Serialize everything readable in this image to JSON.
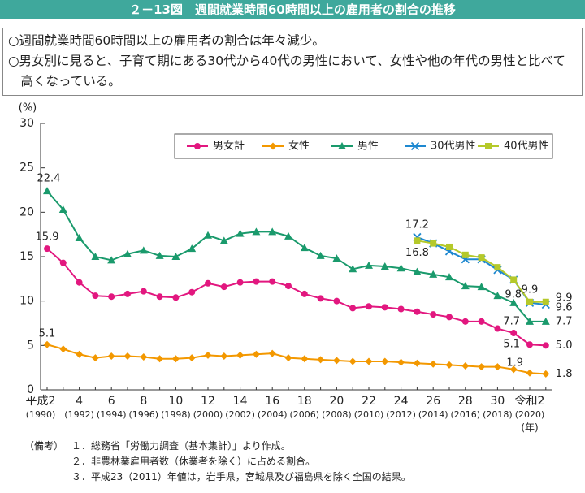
{
  "header": {
    "title": "２－13図　週間就業時間60時間以上の雇用者の割合の推移"
  },
  "summary": [
    "○週間就業時間60時間以上の雇用者の割合は年々減少。",
    "○男女別に見ると、子育て期にある30代から40代の男性において、女性や他の年代の男性と比べて高くなっている。"
  ],
  "chart_data": {
    "type": "line",
    "y_label": "(%)",
    "x_label": "(年)",
    "categories": [
      "平成2",
      null,
      "4",
      null,
      "6",
      null,
      "8",
      null,
      "10",
      null,
      "12",
      null,
      "14",
      null,
      "16",
      null,
      "18",
      null,
      "20",
      null,
      "22",
      null,
      "24",
      null,
      "26",
      null,
      "28",
      null,
      "30",
      null,
      "令和2",
      null
    ],
    "category_years": [
      "(1990)",
      null,
      "(1992)",
      null,
      "(1994)",
      null,
      "(1996)",
      null,
      "(1998)",
      null,
      "(2000)",
      null,
      "(2002)",
      null,
      "(2004)",
      null,
      "(2006)",
      null,
      "(2008)",
      null,
      "(2010)",
      null,
      "(2012)",
      null,
      "(2014)",
      null,
      "(2016)",
      null,
      "(2018)",
      null,
      "(2020)",
      null
    ],
    "ylim": [
      0,
      30
    ],
    "yticks": [
      0,
      5,
      10,
      15,
      20,
      25,
      30
    ],
    "grid": false,
    "legend": "top-right",
    "series": [
      {
        "name": "男女計",
        "color": "#e2177f",
        "marker": "circle",
        "values": [
          15.9,
          14.3,
          12.1,
          10.6,
          10.5,
          10.8,
          11.1,
          10.5,
          10.4,
          11.0,
          12.0,
          11.6,
          12.1,
          12.2,
          12.2,
          11.7,
          10.8,
          10.3,
          10.0,
          9.2,
          9.4,
          9.3,
          9.1,
          8.8,
          8.5,
          8.2,
          7.7,
          7.7,
          6.9,
          6.4,
          5.1,
          5.0
        ],
        "value_labels": [
          "15.9",
          null,
          null,
          null,
          null,
          null,
          null,
          null,
          null,
          null,
          null,
          null,
          null,
          null,
          null,
          null,
          null,
          null,
          null,
          null,
          null,
          null,
          null,
          null,
          null,
          null,
          null,
          null,
          null,
          null,
          "5.1",
          "5.0"
        ]
      },
      {
        "name": "女性",
        "color": "#f39800",
        "marker": "diamond",
        "values": [
          5.1,
          4.6,
          4.0,
          3.6,
          3.8,
          3.8,
          3.7,
          3.5,
          3.5,
          3.6,
          3.9,
          3.8,
          3.9,
          4.0,
          4.1,
          3.6,
          3.5,
          3.4,
          3.3,
          3.2,
          3.2,
          3.2,
          3.1,
          3.0,
          2.9,
          2.8,
          2.7,
          2.6,
          2.6,
          2.3,
          1.9,
          1.8
        ],
        "value_labels": [
          "5.1",
          null,
          null,
          null,
          null,
          null,
          null,
          null,
          null,
          null,
          null,
          null,
          null,
          null,
          null,
          null,
          null,
          null,
          null,
          null,
          null,
          null,
          null,
          null,
          null,
          null,
          null,
          null,
          null,
          null,
          "1.9",
          "1.8"
        ]
      },
      {
        "name": "男性",
        "color": "#1a9a6c",
        "marker": "triangle",
        "values": [
          22.4,
          20.3,
          17.1,
          15.0,
          14.6,
          15.3,
          15.7,
          15.1,
          15.0,
          15.9,
          17.4,
          16.8,
          17.6,
          17.8,
          17.8,
          17.3,
          16.0,
          15.1,
          14.8,
          13.6,
          14.0,
          13.9,
          13.7,
          13.3,
          13.0,
          12.7,
          11.7,
          11.6,
          10.6,
          9.8,
          7.7,
          7.7
        ],
        "value_labels": [
          "22.4",
          null,
          null,
          null,
          null,
          null,
          null,
          null,
          null,
          null,
          null,
          null,
          null,
          null,
          null,
          null,
          null,
          null,
          null,
          null,
          null,
          null,
          null,
          null,
          null,
          null,
          null,
          null,
          null,
          null,
          "7.7",
          "7.7"
        ]
      },
      {
        "name": "30代男性",
        "color": "#1e88d0",
        "marker": "x",
        "values": [
          null,
          null,
          null,
          null,
          null,
          null,
          null,
          null,
          null,
          null,
          null,
          null,
          null,
          null,
          null,
          null,
          null,
          null,
          null,
          null,
          null,
          null,
          null,
          17.2,
          16.5,
          15.6,
          14.7,
          14.7,
          13.5,
          12.4,
          9.8,
          9.6
        ],
        "value_labels": [
          null,
          null,
          null,
          null,
          null,
          null,
          null,
          null,
          null,
          null,
          null,
          null,
          null,
          null,
          null,
          null,
          null,
          null,
          null,
          null,
          null,
          null,
          null,
          "17.2",
          null,
          null,
          null,
          null,
          null,
          null,
          "9.8",
          "9.6"
        ]
      },
      {
        "name": "40代男性",
        "color": "#b5c92a",
        "marker": "square",
        "values": [
          null,
          null,
          null,
          null,
          null,
          null,
          null,
          null,
          null,
          null,
          null,
          null,
          null,
          null,
          null,
          null,
          null,
          null,
          null,
          null,
          null,
          null,
          null,
          16.8,
          16.5,
          16.1,
          15.2,
          14.9,
          13.8,
          12.4,
          9.9,
          9.9
        ],
        "value_labels": [
          null,
          null,
          null,
          null,
          null,
          null,
          null,
          null,
          null,
          null,
          null,
          null,
          null,
          null,
          null,
          null,
          null,
          null,
          null,
          null,
          null,
          null,
          null,
          "16.8",
          null,
          null,
          null,
          null,
          null,
          null,
          "9.9",
          "9.9"
        ]
      }
    ]
  },
  "notes": {
    "label": "（備考）",
    "items": [
      "１．総務省「労働力調査（基本集計）」より作成。",
      "２．非農林業雇用者数（休業者を除く）に占める割合。",
      "３．平成23（2011）年値は，岩手県，宮城県及び福島県を除く全国の結果。"
    ]
  }
}
